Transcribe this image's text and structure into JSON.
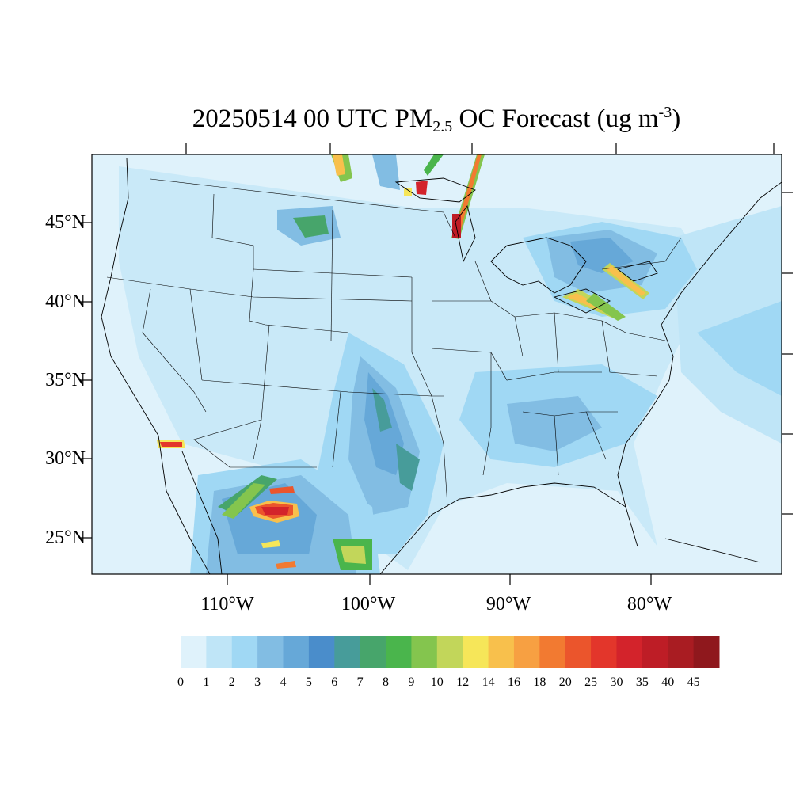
{
  "title": {
    "prefix": "20250514 00 UTC PM",
    "subscript": "2.5",
    "middle": " OC Forecast (ug m",
    "superscript": "-3",
    "suffix": ")"
  },
  "lat_labels": [
    "45°N",
    "40°N",
    "35°N",
    "30°N",
    "25°N"
  ],
  "lon_labels": [
    "110°W",
    "100°W",
    "90°W",
    "80°W"
  ],
  "colorbar": {
    "labels": [
      "0",
      "1",
      "2",
      "3",
      "4",
      "5",
      "6",
      "7",
      "8",
      "9",
      "10",
      "12",
      "14",
      "16",
      "18",
      "20",
      "25",
      "30",
      "35",
      "40",
      "45"
    ],
    "colors": [
      "#dff2fb",
      "#bfe5f7",
      "#a0d8f4",
      "#82bde3",
      "#66a8d8",
      "#4a8dcb",
      "#479c9a",
      "#47a56b",
      "#4ab54c",
      "#84c54e",
      "#c2d65a",
      "#f6e659",
      "#f8c04c",
      "#f7a042",
      "#f27a31",
      "#eb552c",
      "#e3362b",
      "#d3232b",
      "#be1d26",
      "#a91c22",
      "#8f181d"
    ]
  },
  "colors": {
    "ocean": "#dff2fb",
    "land_low": "#c9e9f8",
    "borders": "#000000"
  }
}
